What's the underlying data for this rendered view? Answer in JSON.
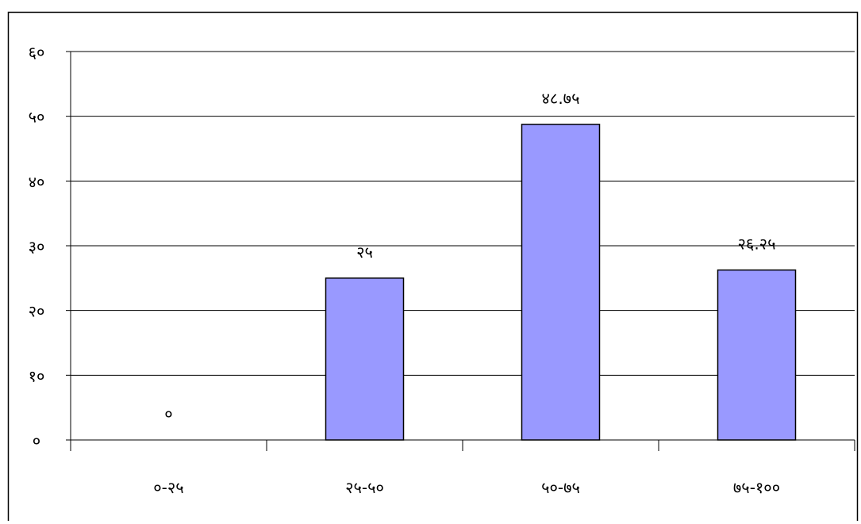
{
  "chart_data": {
    "type": "bar",
    "categories": [
      "०-२५",
      "२५-५०",
      "५०-७५",
      "७५-१००"
    ],
    "values": [
      0,
      25,
      48.75,
      26.25
    ],
    "value_labels": [
      "०",
      "२५",
      "४८.७५",
      "२६.२५"
    ],
    "ylim": [
      0,
      60
    ],
    "yticks": [
      0,
      10,
      20,
      30,
      40,
      50,
      60
    ],
    "ytick_labels": [
      "०",
      "१०",
      "२०",
      "३०",
      "४०",
      "५०",
      "६०"
    ],
    "grid": true,
    "legend": "none",
    "bar_color": "#9999ff",
    "bar_edge_color": "#000000"
  }
}
